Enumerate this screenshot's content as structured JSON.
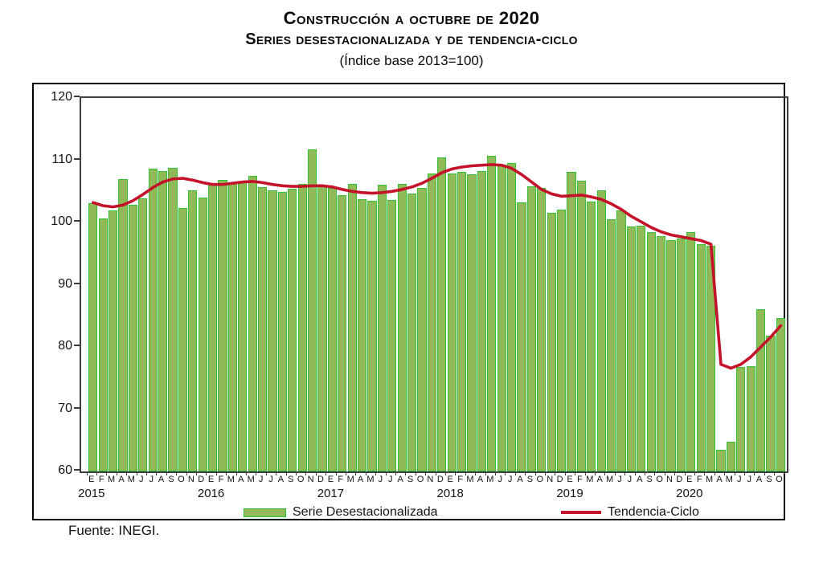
{
  "title": {
    "line1": "Construcción a octubre de 2020",
    "line2": "Series desestacionalizada y de tendencia-ciclo",
    "line3": "(Índice base 2013=100)"
  },
  "source": "Fuente: INEGI.",
  "legend": {
    "bar_label": "Serie Desestacionalizada",
    "line_label": "Tendencia-Ciclo"
  },
  "colors": {
    "bar_fill": "#8fba57",
    "bar_border": "#33c433",
    "trend_line": "#c4122a",
    "axis": "#3c3c3c",
    "frame": "#000000"
  },
  "chart_data": {
    "type": "bar",
    "title": "Construcción a octubre de 2020 — Series desestacionalizada y de tendencia-ciclo (Índice base 2013=100)",
    "xlabel": "",
    "ylabel": "",
    "ylim": [
      60,
      120
    ],
    "yticks": [
      120,
      110,
      100,
      90,
      80,
      70,
      60
    ],
    "grid": false,
    "legend_position": "bottom",
    "month_letters": [
      "E",
      "F",
      "M",
      "A",
      "M",
      "J",
      "J",
      "A",
      "S",
      "O",
      "N",
      "D"
    ],
    "years": [
      "2015",
      "2016",
      "2017",
      "2018",
      "2019",
      "2020"
    ],
    "months_in_last_year": 10,
    "series": [
      {
        "name": "Serie Desestacionalizada",
        "type": "bar",
        "values": [
          103.1,
          100.6,
          101.9,
          107.0,
          102.9,
          103.9,
          108.6,
          108.2,
          108.8,
          102.3,
          105.2,
          104.0,
          106.1,
          106.9,
          106.3,
          106.5,
          107.5,
          105.7,
          105.2,
          104.9,
          105.4,
          106.2,
          111.7,
          106.0,
          105.5,
          104.4,
          106.2,
          103.8,
          103.5,
          106.1,
          103.6,
          106.2,
          104.7,
          105.6,
          107.9,
          110.5,
          107.9,
          108.1,
          107.8,
          108.2,
          110.7,
          109.3,
          109.6,
          103.2,
          105.8,
          105.5,
          101.5,
          102.1,
          108.1,
          106.7,
          103.4,
          105.1,
          100.5,
          102.0,
          99.3,
          99.5,
          98.5,
          97.8,
          97.2,
          97.4,
          98.5,
          96.5,
          96.2,
          63.5,
          64.8,
          76.8,
          76.9,
          86.1,
          81.8,
          84.6
        ]
      },
      {
        "name": "Tendencia-Ciclo",
        "type": "line",
        "values": [
          103.2,
          102.7,
          102.5,
          102.8,
          103.5,
          104.5,
          105.6,
          106.5,
          107.0,
          107.1,
          106.8,
          106.4,
          106.1,
          106.1,
          106.3,
          106.5,
          106.6,
          106.4,
          106.1,
          105.9,
          105.8,
          105.8,
          105.9,
          105.9,
          105.7,
          105.3,
          105.0,
          104.8,
          104.7,
          104.8,
          105.0,
          105.3,
          105.7,
          106.3,
          107.1,
          108.0,
          108.6,
          108.9,
          109.1,
          109.2,
          109.3,
          109.2,
          108.7,
          107.7,
          106.5,
          105.3,
          104.6,
          104.2,
          104.3,
          104.4,
          104.1,
          103.7,
          103.0,
          102.1,
          101.0,
          100.1,
          99.2,
          98.5,
          98.0,
          97.7,
          97.4,
          97.1,
          96.5,
          77.2,
          76.6,
          77.2,
          78.4,
          80.0,
          81.6,
          83.4
        ]
      }
    ]
  }
}
